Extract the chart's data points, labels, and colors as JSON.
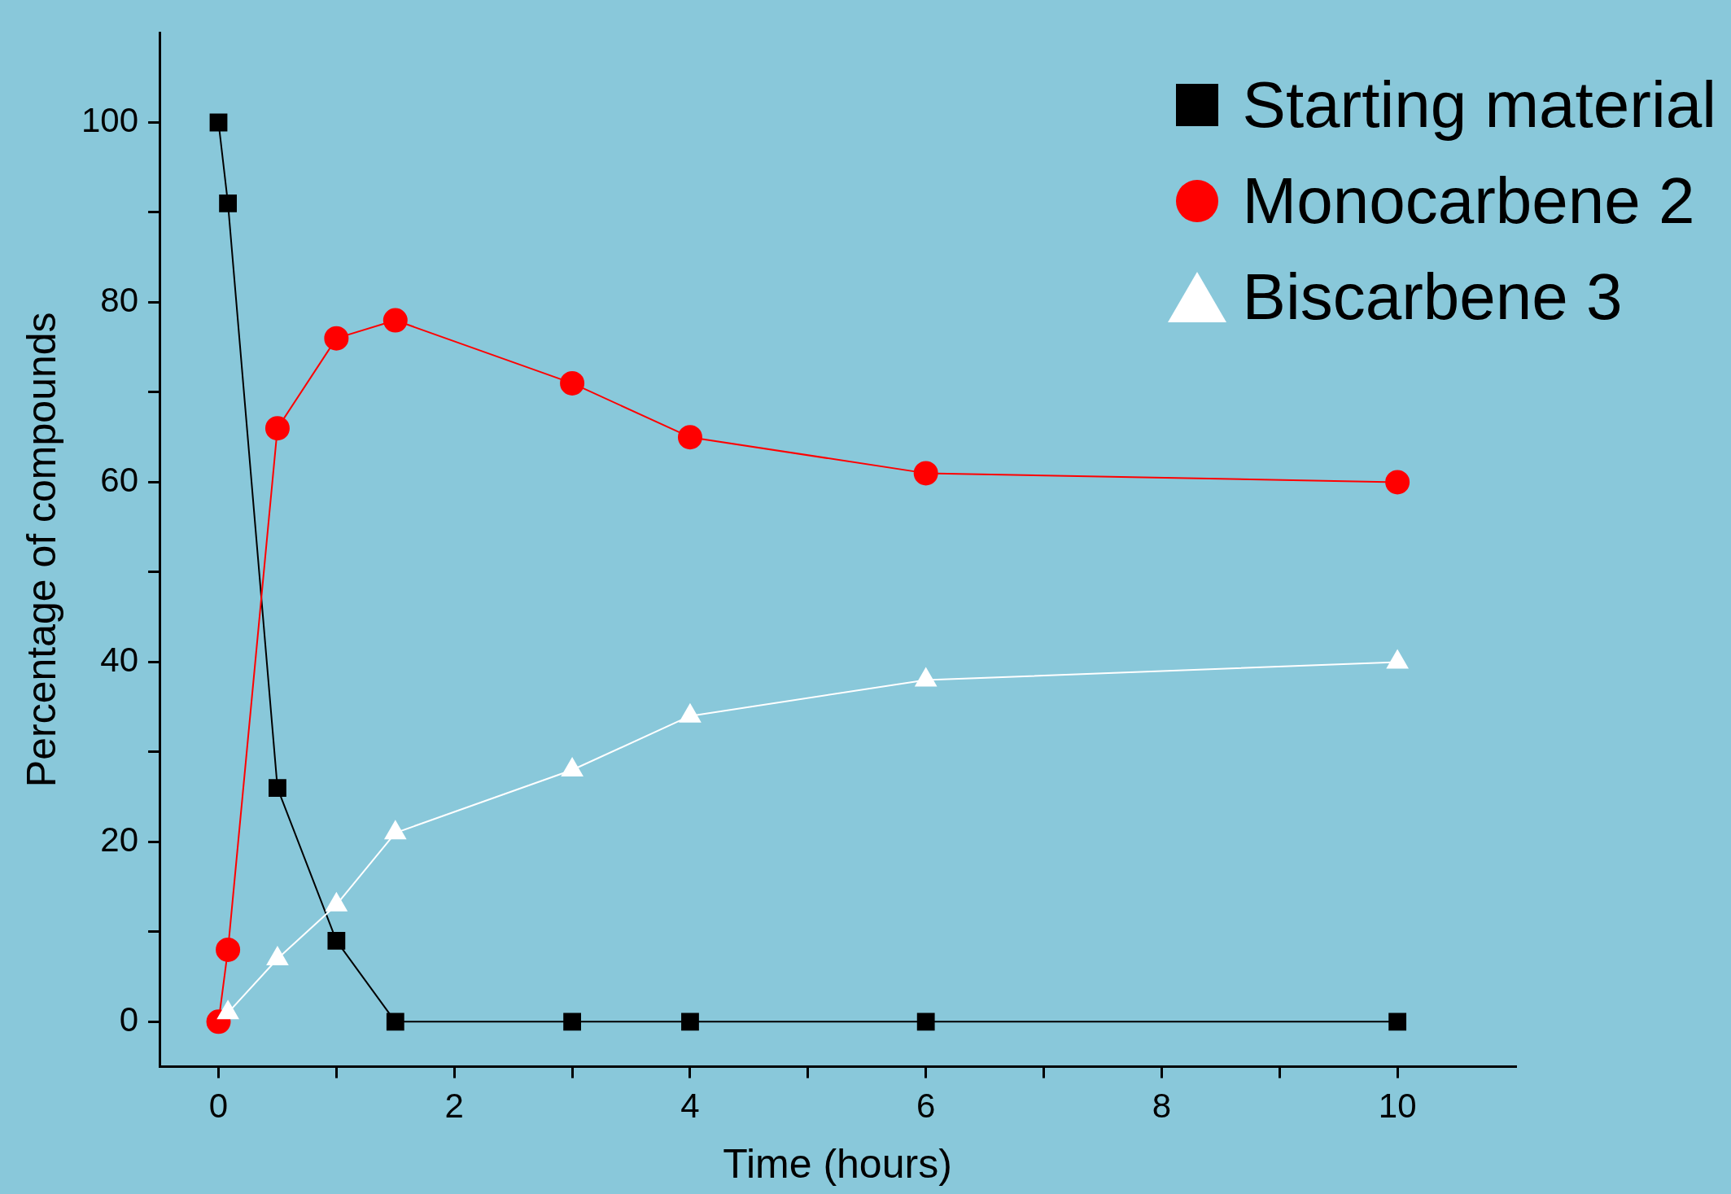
{
  "chart_data": {
    "type": "line",
    "xlabel": "Time (hours)",
    "ylabel": "Percentage of compounds",
    "xlim": [
      -0.5,
      11
    ],
    "ylim": [
      -5,
      110
    ],
    "xticks": [
      0,
      {
        "value": 1,
        "label": null
      },
      2,
      {
        "value": 3,
        "label": null
      },
      4,
      {
        "value": 5,
        "label": null
      },
      6,
      {
        "value": 7,
        "label": null
      },
      8,
      {
        "value": 9,
        "label": null
      },
      10
    ],
    "yticks": [
      0,
      {
        "value": 10,
        "label": null
      },
      20,
      {
        "value": 30,
        "label": null
      },
      40,
      {
        "value": 50,
        "label": null
      },
      60,
      {
        "value": 70,
        "label": null
      },
      80,
      {
        "value": 90,
        "label": null
      },
      100
    ],
    "grid": false,
    "legend": "top right",
    "line_style": "solid",
    "x": [
      0,
      0.08,
      0.5,
      1,
      1.5,
      3,
      4,
      6,
      10
    ],
    "series": [
      {
        "name": "Starting material",
        "color": "#000000",
        "marker": "square",
        "values": [
          100,
          91,
          26,
          9,
          0,
          0,
          0,
          0,
          0
        ]
      },
      {
        "name": "Monocarbene 2",
        "color": "#ff0000",
        "marker": "circle",
        "values": [
          0,
          8,
          66,
          76,
          78,
          71,
          65,
          61,
          60
        ]
      },
      {
        "name": "Biscarbene 3",
        "color": "#ffffff",
        "marker": "triangle",
        "x": [
          0.08,
          0.5,
          1,
          1.5,
          3,
          4,
          6,
          10
        ],
        "values": [
          1,
          7,
          13,
          21,
          28,
          34,
          38,
          40
        ]
      }
    ]
  }
}
